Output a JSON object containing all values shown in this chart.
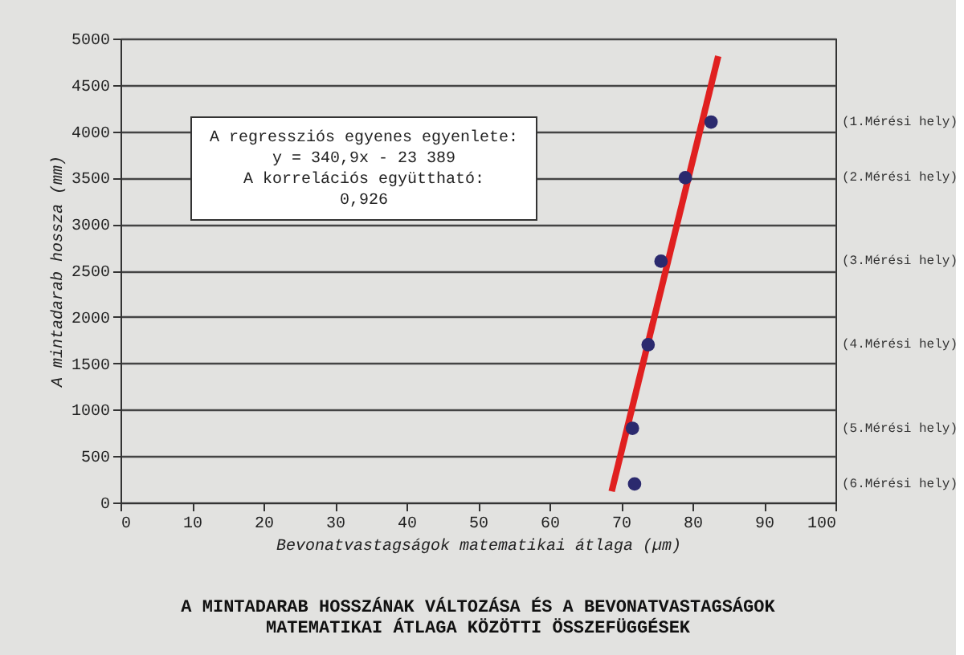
{
  "chart_data": {
    "type": "scatter",
    "title": [
      "A MINTADARAB HOSSZÁNAK VÁLTOZÁSA ÉS A BEVONATVASTAGSÁGOK",
      "MATEMATIKAI ÁTLAGA KÖZÖTTI ÖSSZEFÜGGÉSEK"
    ],
    "xlabel": "Bevonatvastagságok matematikai átlaga (µm)",
    "ylabel": "A mintadarab hossza (mm)",
    "annotations": [
      "A regressziós egyenes egyenlete:\ny = 340,9x - 23 389\nA korrelációs együttható:\n0,926",
      "(1.Mérési hely)",
      "(2.Mérési hely)",
      "(3.Mérési hely)",
      "(4.Mérési hely)",
      "(5.Mérési hely)",
      "(6.Mérési hely)"
    ],
    "series": [
      {
        "color": "#2b2a6e",
        "x": [
          82.6,
          79.0,
          75.6,
          73.8,
          71.6,
          71.9
        ],
        "values": [
          4100,
          3500,
          2600,
          1700,
          800,
          200
        ]
      },
      {
        "type": "line",
        "marker": "none",
        "color": "#e02020",
        "x": [
          68.7,
          83.6
        ],
        "values": [
          120,
          4810
        ]
      }
    ],
    "xlim": [
      0,
      100
    ],
    "ylim": [
      0,
      5000
    ],
    "xticks": [
      0,
      10,
      20,
      30,
      40,
      50,
      60,
      70,
      80,
      90,
      100
    ],
    "yticks": [
      0,
      500,
      1000,
      1500,
      2000,
      2500,
      3000,
      3500,
      4000,
      4500,
      5000
    ],
    "grid": "y",
    "marker": "circle",
    "line_style": "solid"
  }
}
